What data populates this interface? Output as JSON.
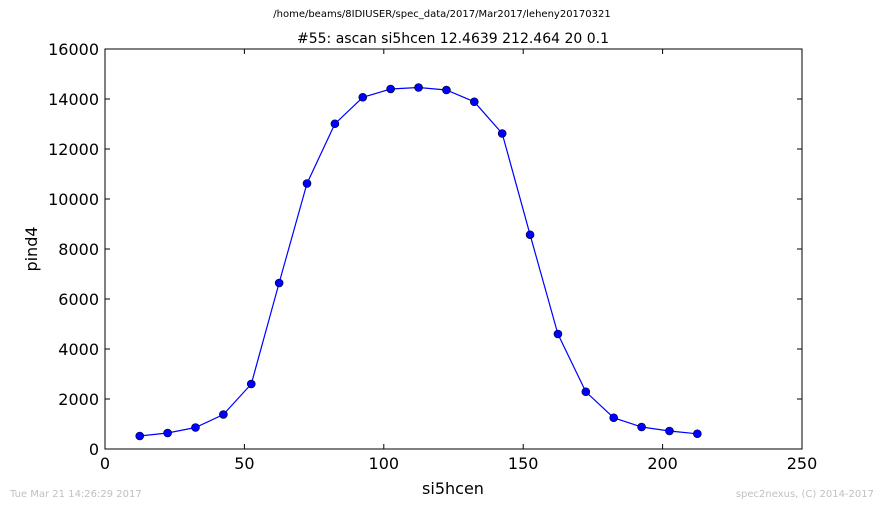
{
  "header": {
    "filepath": "/home/beams/8IDIUSER/spec_data/2017/Mar2017/leheny20170321"
  },
  "footer": {
    "timestamp": "Tue Mar 21 14:26:29 2017",
    "credit": "spec2nexus, (C) 2014-2017"
  },
  "colors": {
    "series": "#0000ff",
    "axes": "#000000",
    "footer_text": "#c0c0c0"
  },
  "chart_data": {
    "type": "line",
    "title": "#55: ascan  si5hcen 12.4639 212.464  20 0.1",
    "xlabel": "si5hcen",
    "ylabel": "pind4",
    "xlim": [
      0,
      250
    ],
    "ylim": [
      0,
      16000
    ],
    "xticks": [
      0,
      50,
      100,
      150,
      200,
      250
    ],
    "yticks": [
      0,
      2000,
      4000,
      6000,
      8000,
      10000,
      12000,
      14000,
      16000
    ],
    "grid": false,
    "marker": "circle",
    "series": [
      {
        "x": [
          12.46,
          22.46,
          32.46,
          42.46,
          52.46,
          62.46,
          72.46,
          82.46,
          92.46,
          102.46,
          112.46,
          122.46,
          132.46,
          142.46,
          152.46,
          162.46,
          172.46,
          182.46,
          192.46,
          202.46,
          212.46
        ],
        "y": [
          520,
          640,
          860,
          1380,
          2600,
          6640,
          10620,
          13010,
          14070,
          14400,
          14460,
          14360,
          13890,
          12620,
          8570,
          4600,
          2290,
          1250,
          880,
          720,
          610
        ]
      }
    ]
  }
}
